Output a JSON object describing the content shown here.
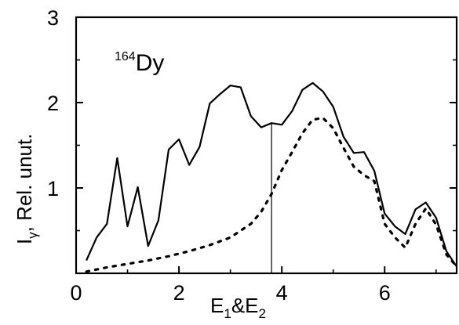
{
  "chart_data": {
    "type": "line",
    "title": "",
    "xlabel": {
      "base1": "E",
      "sub1": "1",
      "mid": "&E",
      "sub2": "2"
    },
    "ylabel": {
      "base": "I",
      "sub": "γ",
      "rest": ", Rel. unut."
    },
    "annotation": {
      "mass": "164",
      "element": "Dy"
    },
    "xlim": [
      0,
      7.4
    ],
    "ylim": [
      0,
      3
    ],
    "xticks": [
      {
        "value": 0,
        "label": "0"
      },
      {
        "value": 2,
        "label": "2"
      },
      {
        "value": 4,
        "label": "4"
      },
      {
        "value": 6,
        "label": "6"
      }
    ],
    "yticks": [
      {
        "value": 1,
        "label": "1"
      },
      {
        "value": 2,
        "label": "2"
      },
      {
        "value": 3,
        "label": "3"
      }
    ],
    "minor_x_step": 1,
    "minor_y_step": 0.5,
    "vertical_marker_x": 3.8,
    "grid": false,
    "series": [
      {
        "style": "solid",
        "color": "#000000",
        "x": [
          0.2,
          0.4,
          0.6,
          0.8,
          1.0,
          1.2,
          1.4,
          1.6,
          1.8,
          2.0,
          2.2,
          2.4,
          2.6,
          2.8,
          3.0,
          3.2,
          3.4,
          3.6,
          3.8,
          4.0,
          4.2,
          4.4,
          4.6,
          4.8,
          5.0,
          5.2,
          5.4,
          5.6,
          5.8,
          6.0,
          6.2,
          6.4,
          6.6,
          6.8,
          7.0,
          7.2,
          7.4
        ],
        "y": [
          0.15,
          0.42,
          0.58,
          1.35,
          0.55,
          1.01,
          0.32,
          0.62,
          1.45,
          1.57,
          1.27,
          1.48,
          1.99,
          2.1,
          2.2,
          2.18,
          1.84,
          1.71,
          1.76,
          1.74,
          1.9,
          2.15,
          2.23,
          2.13,
          1.95,
          1.6,
          1.41,
          1.42,
          1.2,
          0.7,
          0.55,
          0.46,
          0.75,
          0.83,
          0.65,
          0.26,
          0.08
        ]
      },
      {
        "style": "dotted",
        "color": "#000000",
        "x": [
          0.2,
          0.6,
          1.0,
          1.4,
          1.8,
          2.2,
          2.6,
          3.0,
          3.4,
          3.6,
          3.8,
          4.0,
          4.2,
          4.4,
          4.6,
          4.8,
          5.0,
          5.2,
          5.4,
          5.6,
          5.8,
          6.0,
          6.2,
          6.4,
          6.6,
          6.8,
          7.0,
          7.2,
          7.4
        ],
        "y": [
          0.02,
          0.07,
          0.11,
          0.15,
          0.2,
          0.26,
          0.33,
          0.42,
          0.58,
          0.72,
          0.93,
          1.21,
          1.42,
          1.64,
          1.8,
          1.82,
          1.7,
          1.47,
          1.25,
          1.15,
          1.08,
          0.58,
          0.42,
          0.3,
          0.58,
          0.76,
          0.57,
          0.22,
          0.08
        ]
      }
    ]
  }
}
